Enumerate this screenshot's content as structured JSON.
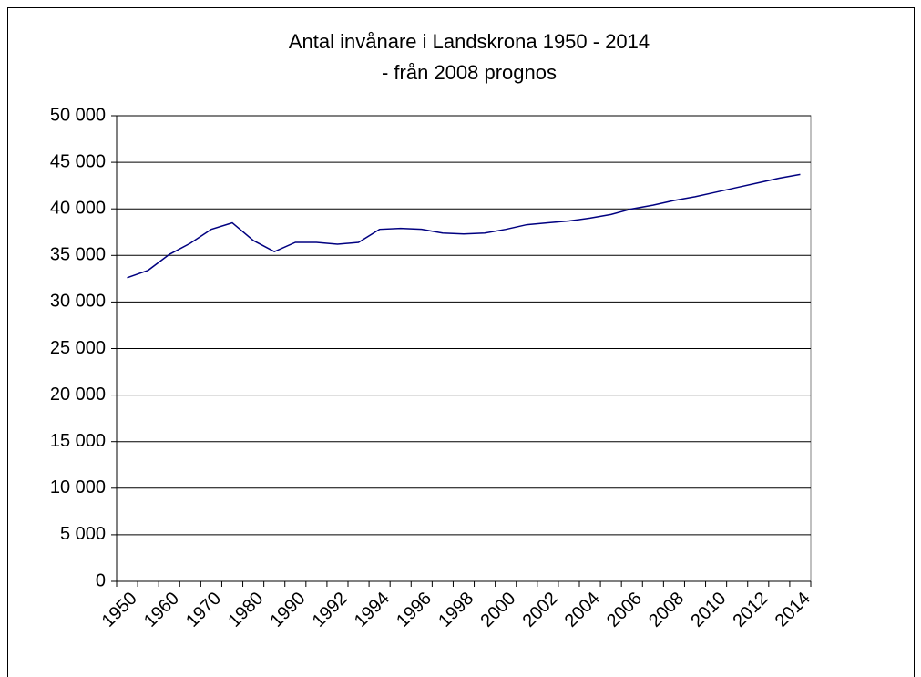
{
  "chart_data": {
    "type": "line",
    "title": [
      "Antal invånare i Landskrona 1950 - 2014",
      "- från 2008 prognos"
    ],
    "categories": [
      "1950",
      null,
      "1960",
      null,
      "1970",
      null,
      "1980",
      null,
      "1990",
      null,
      "1992",
      null,
      "1994",
      null,
      "1996",
      null,
      "1998",
      null,
      "2000",
      null,
      "2002",
      null,
      "2004",
      null,
      "2006",
      null,
      "2008",
      null,
      "2010",
      null,
      "2012",
      null,
      "2014"
    ],
    "values": [
      32600,
      33400,
      35100,
      36300,
      37800,
      38500,
      36600,
      35400,
      36400,
      36400,
      36200,
      36400,
      37800,
      37900,
      37800,
      37400,
      37300,
      37400,
      37800,
      38300,
      38500,
      38700,
      39000,
      39400,
      40000,
      40400,
      40900,
      41300,
      41800,
      42300,
      42800,
      43300,
      43700
    ],
    "color": "#000080",
    "ylim": [
      0,
      50000
    ],
    "yticks": [
      0,
      {
        "value": 5000,
        "label": "5 000"
      },
      {
        "value": 10000,
        "label": "10 000"
      },
      {
        "value": 15000,
        "label": "15 000"
      },
      {
        "value": 20000,
        "label": "20 000"
      },
      {
        "value": 25000,
        "label": "25 000"
      },
      {
        "value": 30000,
        "label": "30 000"
      },
      {
        "value": 35000,
        "label": "35 000"
      },
      {
        "value": 40000,
        "label": "40 000"
      },
      {
        "value": 45000,
        "label": "45 000"
      },
      {
        "value": 50000,
        "label": "50 000"
      }
    ],
    "grid": true
  }
}
